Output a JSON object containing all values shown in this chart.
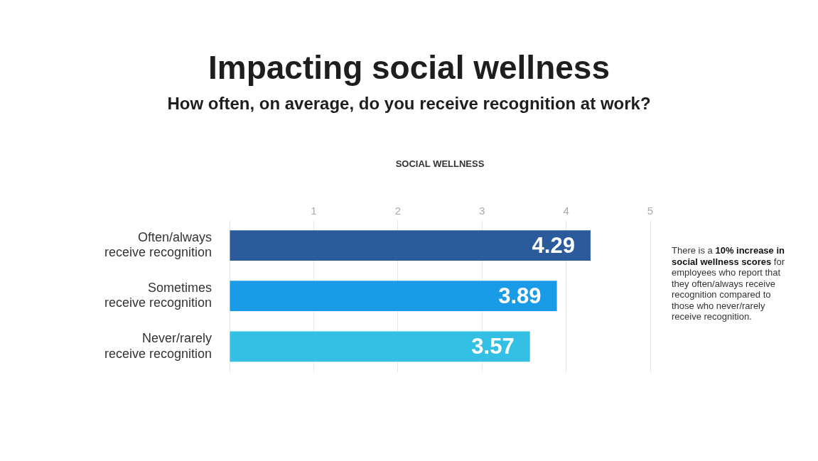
{
  "chart_data": {
    "type": "bar",
    "orientation": "horizontal",
    "title": "Impacting social wellness",
    "subtitle": "How often, on average, do you receive recognition at work?",
    "xlabel": "SOCIAL WELLNESS",
    "categories": [
      "Often/always receive recognition",
      "Sometimes receive recognition",
      "Never/rarely receive recognition"
    ],
    "values": [
      4.29,
      3.89,
      3.57
    ],
    "colors": [
      "#2b5b9b",
      "#1a9be8",
      "#33c0e4"
    ],
    "xlim": [
      0,
      5
    ],
    "xticks": [
      {
        "value": 0,
        "label": null
      },
      1,
      2,
      3,
      4,
      5
    ],
    "grid": "x",
    "data_labels": true,
    "annotations": [
      "There is a",
      "10% increase in social wellness scores",
      "for employees who report that they often/always receive recognition compared to those who never/rarely receive recognition."
    ]
  }
}
